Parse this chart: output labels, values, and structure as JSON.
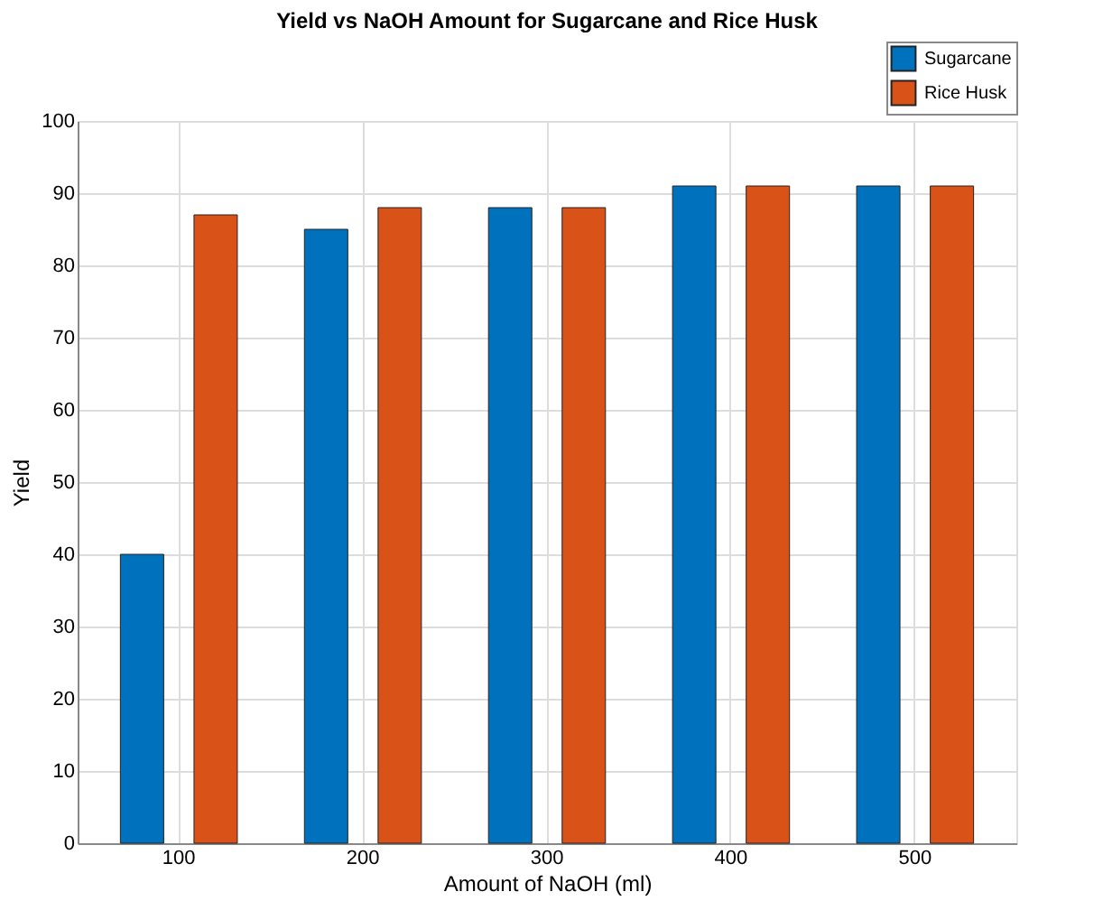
{
  "chart_data": {
    "type": "bar",
    "title": "Yield vs NaOH Amount for Sugarcane and Rice Husk",
    "xlabel": "Amount of NaOH (ml)",
    "ylabel": "Yield",
    "categories": [
      "100",
      "200",
      "300",
      "400",
      "500"
    ],
    "series": [
      {
        "name": "Sugarcane",
        "color": "#0072bd",
        "values": [
          40,
          85,
          88,
          91,
          91
        ]
      },
      {
        "name": "Rice Husk",
        "color": "#d95319",
        "values": [
          87,
          88,
          88,
          91,
          91
        ]
      }
    ],
    "ylim": [
      0,
      100
    ],
    "yticks": [
      0,
      10,
      20,
      30,
      40,
      50,
      60,
      70,
      80,
      90,
      100
    ],
    "grid": true,
    "legend": "top right"
  }
}
